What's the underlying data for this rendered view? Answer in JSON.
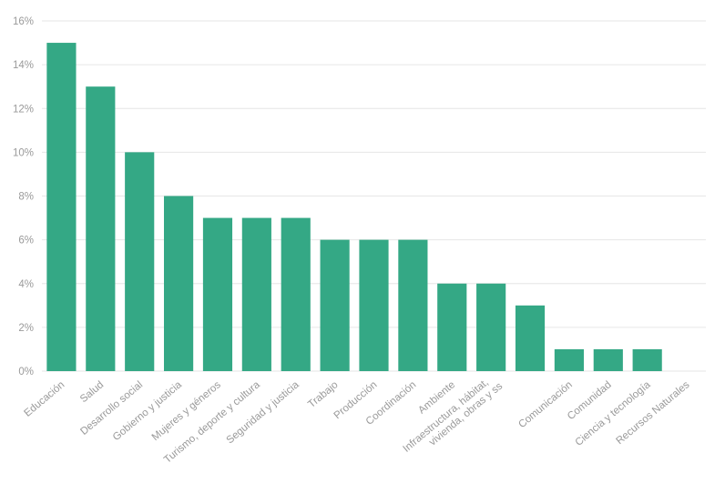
{
  "chart_data": {
    "type": "bar",
    "categories": [
      "Educación",
      "Salud",
      "Desarrollo social",
      "Gobierno y justicia",
      "Mujeres y géneros",
      "Turismo, deporte y cultura",
      "Seguridad y justicia",
      "Trabajo",
      "Producción",
      "Coordinación",
      "Ambiente",
      "Infraestructura, hábitat, vivienda, obras y ss",
      "",
      "Comunicación",
      "Comunidad",
      "Ciencia y tecnología",
      "Recursos Naturales"
    ],
    "values": [
      15,
      13,
      10,
      8,
      7,
      7,
      7,
      6,
      6,
      6,
      4,
      4,
      3,
      1,
      1,
      1,
      0
    ],
    "color": "#34a885",
    "ylim": [
      0,
      16
    ],
    "yticks": [
      {
        "value": 0,
        "label": "0%"
      },
      {
        "value": 2,
        "label": "2%"
      },
      {
        "value": 4,
        "label": "4%"
      },
      {
        "value": 6,
        "label": "6%"
      },
      {
        "value": 8,
        "label": "8%"
      },
      {
        "value": 10,
        "label": "10%"
      },
      {
        "value": 12,
        "label": "12%"
      },
      {
        "value": 14,
        "label": "14%"
      },
      {
        "value": 16,
        "label": "16%"
      }
    ],
    "grid": true
  }
}
